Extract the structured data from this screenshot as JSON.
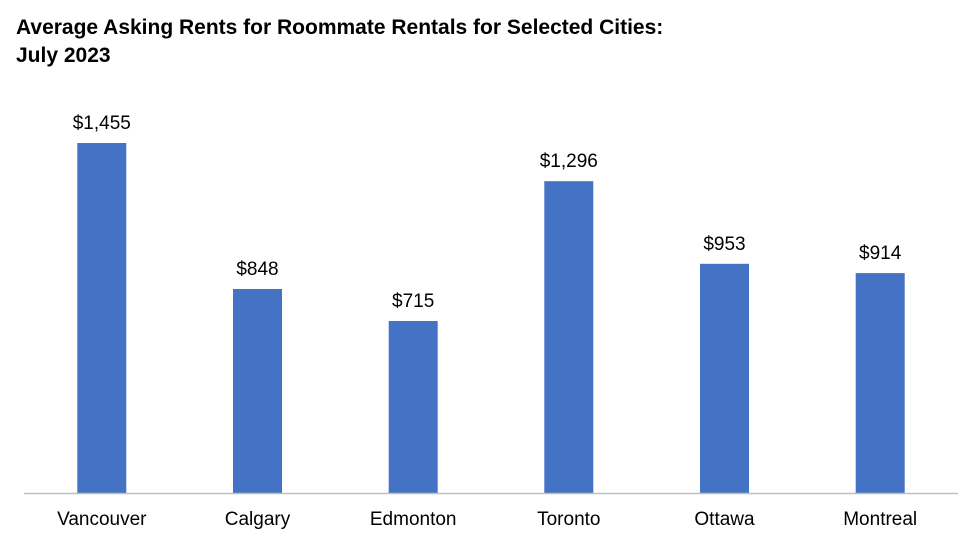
{
  "chart_data": {
    "type": "bar",
    "title_line1": "Average Asking Rents for Roommate Rentals for Selected Cities:",
    "title_line2": "July 2023",
    "xlabel": "",
    "ylabel": "",
    "categories": [
      "Vancouver",
      "Calgary",
      "Edmonton",
      "Toronto",
      "Ottawa",
      "Montreal"
    ],
    "values": [
      1455,
      848,
      715,
      1296,
      953,
      914
    ],
    "data_labels": [
      "$1,455",
      "$848",
      "$715",
      "$1,296",
      "$953",
      "$914"
    ],
    "ylim": [
      0,
      1455
    ],
    "grid": false,
    "legend": "none",
    "bar_color": "#4472C4",
    "axis_color": "#BFBFBF"
  }
}
